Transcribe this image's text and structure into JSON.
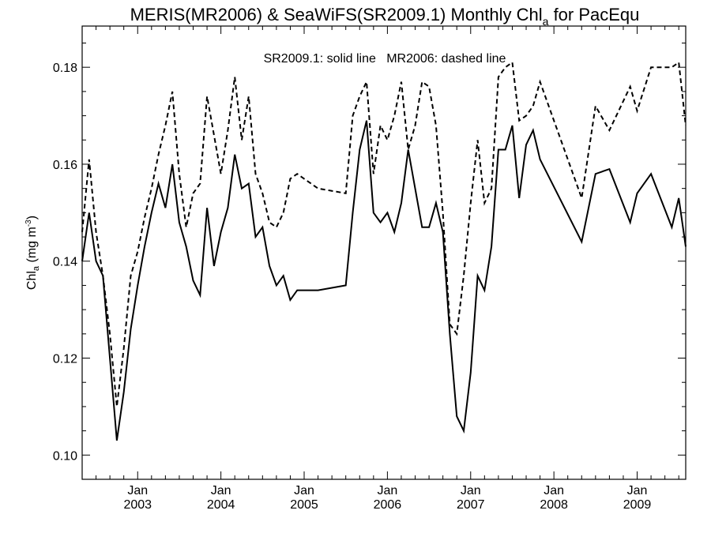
{
  "title_main": "MERIS(MR2006) & SeaWiFS(SR2009.1) Monthly Chl",
  "title_sub": "a",
  "title_tail": " for PacEqu",
  "ylabel_main": "Chl",
  "ylabel_sub": "a",
  "ylabel_unit": " (mg m",
  "ylabel_sup": "-3",
  "ylabel_close": ")",
  "legend_text": "SR2009.1: solid line   MR2006: dashed line",
  "chart_data": {
    "type": "line",
    "title": "MERIS(MR2006) & SeaWiFS(SR2009.1) Monthly Chl_a for PacEqu",
    "ylabel": "Chl_a (mg m^-3)",
    "xlabel": "",
    "xlim": [
      "2002-05",
      "2009-08"
    ],
    "ylim": [
      0.095,
      0.1885
    ],
    "y_ticks": [
      0.1,
      0.12,
      0.14,
      0.16,
      0.18
    ],
    "y_tick_labels": [
      "0.10",
      "0.12",
      "0.14",
      "0.16",
      "0.18"
    ],
    "x_ticks": [
      {
        "month": "Jan",
        "year": "2003",
        "date": "2003-01"
      },
      {
        "month": "Jan",
        "year": "2004",
        "date": "2004-01"
      },
      {
        "month": "Jan",
        "year": "2005",
        "date": "2005-01"
      },
      {
        "month": "Jan",
        "year": "2006",
        "date": "2006-01"
      },
      {
        "month": "Jan",
        "year": "2007",
        "date": "2007-01"
      },
      {
        "month": "Jan",
        "year": "2008",
        "date": "2008-01"
      },
      {
        "month": "Jan",
        "year": "2009",
        "date": "2009-01"
      }
    ],
    "grid": false,
    "series": [
      {
        "name": "SR2009.1",
        "style": "solid",
        "x": [
          "2002-05",
          "2002-06",
          "2002-07",
          "2002-08",
          "2002-09",
          "2002-10",
          "2002-11",
          "2002-12",
          "2003-01",
          "2003-02",
          "2003-03",
          "2003-04",
          "2003-05",
          "2003-06",
          "2003-07",
          "2003-08",
          "2003-09",
          "2003-10",
          "2003-11",
          "2003-12",
          "2004-01",
          "2004-02",
          "2004-03",
          "2004-04",
          "2004-05",
          "2004-06",
          "2004-07",
          "2004-08",
          "2004-09",
          "2004-10",
          "2004-11",
          "2004-12",
          "2005-01",
          "2005-03",
          "2005-07",
          "2005-08",
          "2005-09",
          "2005-10",
          "2005-11",
          "2005-12",
          "2006-01",
          "2006-02",
          "2006-03",
          "2006-04",
          "2006-05",
          "2006-06",
          "2006-07",
          "2006-08",
          "2006-09",
          "2006-10",
          "2006-11",
          "2006-12",
          "2007-01",
          "2007-02",
          "2007-03",
          "2007-04",
          "2007-05",
          "2007-06",
          "2007-07",
          "2007-08",
          "2007-09",
          "2007-10",
          "2007-11",
          "2008-05",
          "2008-07",
          "2008-09",
          "2008-12",
          "2009-01",
          "2009-03",
          "2009-06",
          "2009-07",
          "2009-08"
        ],
        "values": [
          0.14,
          0.15,
          0.14,
          0.137,
          0.12,
          0.103,
          0.113,
          0.126,
          0.135,
          0.143,
          0.15,
          0.156,
          0.151,
          0.16,
          0.148,
          0.143,
          0.136,
          0.133,
          0.151,
          0.139,
          0.146,
          0.151,
          0.162,
          0.155,
          0.156,
          0.145,
          0.147,
          0.139,
          0.135,
          0.137,
          0.132,
          0.134,
          0.134,
          0.134,
          0.135,
          0.15,
          0.163,
          0.169,
          0.15,
          0.148,
          0.15,
          0.146,
          0.152,
          0.163,
          0.155,
          0.147,
          0.147,
          0.152,
          0.146,
          0.125,
          0.108,
          0.105,
          0.117,
          0.137,
          0.134,
          0.143,
          0.163,
          0.163,
          0.168,
          0.153,
          0.164,
          0.167,
          0.161,
          0.144,
          0.158,
          0.159,
          0.148,
          0.154,
          0.158,
          0.147,
          0.153,
          0.143
        ]
      },
      {
        "name": "MR2006",
        "style": "dashed",
        "x": [
          "2002-05",
          "2002-06",
          "2002-07",
          "2002-08",
          "2002-09",
          "2002-10",
          "2002-11",
          "2002-12",
          "2003-01",
          "2003-02",
          "2003-03",
          "2003-04",
          "2003-05",
          "2003-06",
          "2003-07",
          "2003-08",
          "2003-09",
          "2003-10",
          "2003-11",
          "2003-12",
          "2004-01",
          "2004-02",
          "2004-03",
          "2004-04",
          "2004-05",
          "2004-06",
          "2004-07",
          "2004-08",
          "2004-09",
          "2004-10",
          "2004-11",
          "2004-12",
          "2005-01",
          "2005-03",
          "2005-07",
          "2005-08",
          "2005-09",
          "2005-10",
          "2005-11",
          "2005-12",
          "2006-01",
          "2006-02",
          "2006-03",
          "2006-04",
          "2006-05",
          "2006-06",
          "2006-07",
          "2006-08",
          "2006-09",
          "2006-10",
          "2006-11",
          "2006-12",
          "2007-01",
          "2007-02",
          "2007-03",
          "2007-04",
          "2007-05",
          "2007-06",
          "2007-07",
          "2007-08",
          "2007-09",
          "2007-10",
          "2007-11",
          "2008-05",
          "2008-07",
          "2008-09",
          "2008-12",
          "2009-01",
          "2009-03",
          "2009-06",
          "2009-07",
          "2009-08"
        ],
        "values": [
          0.146,
          0.161,
          0.146,
          0.137,
          0.125,
          0.11,
          0.122,
          0.137,
          0.142,
          0.149,
          0.155,
          0.162,
          0.168,
          0.175,
          0.158,
          0.147,
          0.154,
          0.156,
          0.174,
          0.166,
          0.158,
          0.167,
          0.178,
          0.165,
          0.174,
          0.158,
          0.154,
          0.148,
          0.147,
          0.15,
          0.157,
          0.158,
          0.157,
          0.155,
          0.154,
          0.17,
          0.174,
          0.177,
          0.158,
          0.168,
          0.165,
          0.17,
          0.177,
          0.163,
          0.168,
          0.177,
          0.176,
          0.168,
          0.15,
          0.127,
          0.125,
          0.137,
          0.152,
          0.165,
          0.152,
          0.155,
          0.178,
          0.18,
          0.181,
          0.169,
          0.17,
          0.172,
          0.177,
          0.153,
          0.172,
          0.167,
          0.176,
          0.171,
          0.18,
          0.18,
          0.181,
          0.168
        ]
      }
    ]
  }
}
